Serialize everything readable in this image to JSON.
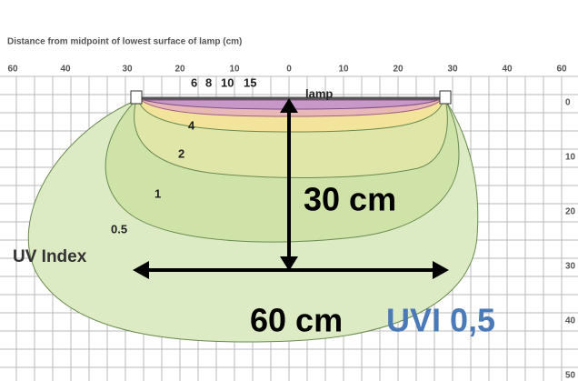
{
  "title": "Distance from midpoint of lowest surface of lamp (cm)",
  "top_axis_labels": [
    "60",
    "40",
    "30",
    "20",
    "10",
    "0",
    "10",
    "20",
    "30",
    "40",
    "60"
  ],
  "right_axis_labels": [
    "0",
    "10",
    "20",
    "30",
    "40",
    "50"
  ],
  "contour_labels": {
    "inner": [
      "6",
      "8",
      "10",
      "15"
    ],
    "lamp": "lamp",
    "four": "4",
    "two": "2",
    "one": "1",
    "half": "0.5"
  },
  "axis_name": "UV Index",
  "annotations": {
    "height": "30 cm",
    "width": "60 cm",
    "uvi": "UVI 0,5"
  }
}
